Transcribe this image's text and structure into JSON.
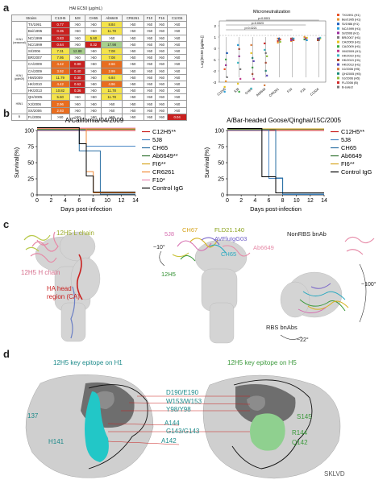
{
  "panels": {
    "a": "a",
    "b": "b",
    "c": "c",
    "d": "d"
  },
  "table": {
    "title": "HAI EC50 (μg/mL)",
    "strain_header": "Strains",
    "columns": [
      "C12H5",
      "5J8",
      "CH65",
      "Ab6649",
      "CR6261",
      "F10",
      "F16",
      "C12G6"
    ],
    "groups": [
      {
        "label": "H1N1 (seasonal)",
        "rows": [
          {
            "name": "TX/1991",
            "cells": [
              "0.77",
              ">50",
              ">50",
              "8.84",
              ">50",
              ">50",
              ">50",
              ">50"
            ],
            "colors": [
              "red",
              "wht",
              "wht",
              "yel",
              "wht",
              "wht",
              "wht",
              "wht"
            ]
          },
          {
            "name": "Bei/1995",
            "cells": [
              "0.35",
              ">50",
              ">50",
              "11.78",
              ">50",
              ">50",
              ">50",
              ">50"
            ],
            "colors": [
              "red",
              "wht",
              "wht",
              "yel",
              "wht",
              "wht",
              "wht",
              "wht"
            ]
          },
          {
            "name": "NC/1999",
            "cells": [
              "0.83",
              ">50",
              "5.60",
              ">50",
              ">50",
              ">50",
              ">50",
              ">50"
            ],
            "colors": [
              "red",
              "wht",
              "yel",
              "wht",
              "wht",
              "wht",
              "wht",
              "wht"
            ]
          },
          {
            "name": "NC/1999",
            "cells": [
              "0.64",
              ">50",
              "0.32",
              "17.98",
              ">50",
              ">50",
              ">50",
              ">50"
            ],
            "colors": [
              "red",
              "wht",
              "red",
              "grn",
              "wht",
              "wht",
              "wht",
              "wht"
            ]
          },
          {
            "name": "SI/2006",
            "cells": [
              "7.31",
              "12.88",
              ">50",
              "7.08",
              ">50",
              ">50",
              ">50",
              ">50"
            ],
            "colors": [
              "yel",
              "grn",
              "wht",
              "yel",
              "wht",
              "wht",
              "wht",
              "wht"
            ]
          },
          {
            "name": "BR/2007",
            "cells": [
              "7.95",
              ">50",
              ">50",
              "7.08",
              ">50",
              ">50",
              ">50",
              ">50"
            ],
            "colors": [
              "yel",
              "wht",
              "wht",
              "yel",
              "wht",
              "wht",
              "wht",
              "wht"
            ]
          }
        ]
      },
      {
        "label": "H1N1 (pdm09)",
        "rows": [
          {
            "name": "CA/2009",
            "cells": [
              "4.42",
              "0.80",
              ">50",
              "2.66",
              ">50",
              ">50",
              ">50",
              ">50"
            ],
            "colors": [
              "org",
              "red",
              "wht",
              "org",
              "wht",
              "wht",
              "wht",
              "wht"
            ]
          },
          {
            "name": "CA/2009",
            "cells": [
              "3.92",
              "0.40",
              ">50",
              "2.99",
              ">50",
              ">50",
              ">50",
              ">50"
            ],
            "colors": [
              "org",
              "red",
              "wht",
              "org",
              "wht",
              "wht",
              "wht",
              "wht"
            ]
          },
          {
            "name": "HM/2009",
            "cells": [
              "11.79",
              "0.30",
              ">50",
              "6.84",
              ">50",
              ">50",
              ">50",
              ">50"
            ],
            "colors": [
              "yel",
              "red",
              "wht",
              "yel",
              "wht",
              "wht",
              "wht",
              "wht"
            ]
          },
          {
            "name": "HK/2010",
            "cells": [
              "4.42",
              "0.62",
              ">50",
              "4.96",
              ">50",
              ">50",
              ">50",
              ">50"
            ],
            "colors": [
              "org",
              "red",
              "wht",
              "org",
              "wht",
              "wht",
              "wht",
              "wht"
            ]
          },
          {
            "name": "HK/2013",
            "cells": [
              "10.82",
              "0.36",
              ">50",
              "11.78",
              ">50",
              ">50",
              ">50",
              ">50"
            ],
            "colors": [
              "yel",
              "red",
              "wht",
              "yel",
              "wht",
              "wht",
              "wht",
              "wht"
            ]
          }
        ]
      },
      {
        "label": "H5N1",
        "rows": [
          {
            "name": "QH/2005",
            "cells": [
              "5.60",
              ">50",
              ">50",
              "11.78",
              ">50",
              ">50",
              ">50",
              ">50"
            ],
            "colors": [
              "yel",
              "wht",
              "wht",
              "yel",
              "wht",
              "wht",
              "wht",
              "wht"
            ]
          },
          {
            "name": "XJ/2006",
            "cells": [
              "2.96",
              ">50",
              ">50",
              ">50",
              ">50",
              ">50",
              ">50",
              ">50"
            ],
            "colors": [
              "org",
              "wht",
              "wht",
              "wht",
              "wht",
              "wht",
              "wht",
              "wht"
            ]
          },
          {
            "name": "SX/2006",
            "cells": [
              "2.93",
              ">50",
              ">50",
              ">50",
              ">50",
              ">50",
              ">50",
              ">50"
            ],
            "colors": [
              "org",
              "wht",
              "wht",
              "wht",
              "wht",
              "wht",
              "wht",
              "wht"
            ]
          }
        ]
      },
      {
        "label": "B",
        "rows": [
          {
            "name": "FL/2006",
            "cells": [
              ">50",
              ">50",
              ">50",
              ">50",
              ">50",
              ">50",
              ">50",
              "0.04"
            ],
            "colors": [
              "wht",
              "wht",
              "wht",
              "wht",
              "wht",
              "wht",
              "wht",
              "red"
            ]
          }
        ]
      }
    ]
  },
  "micro": {
    "title": "Microneutralization",
    "ylabel": "Log [EC50 (μg/mL)]",
    "pvals": [
      "p<0.0001",
      "p=0.0023",
      "p=0.0221"
    ],
    "categories": [
      "C12H5",
      "5J8",
      "CH65",
      "Ab6649",
      "CR6261",
      "F10",
      "F16",
      "C12G6"
    ],
    "legend": [
      "TX/1991 (H1)",
      "Bei/1995 (H1)",
      "SI/1986 (H1)",
      "NC/1999 (H1)",
      "SI/2006 (H1)",
      "BR/2007 (H1)",
      "CA/2009 (H1)",
      "CA/2009 (H1)",
      "XM/2009 (H1)",
      "HK/2010 (H1)",
      "HK/2013 (H1)",
      "HK/2013 (H1)",
      "XJ/2006 (H5)",
      "QH/2005 (H5)",
      "XJ/2006 (H5)",
      "FL/2006 (B)",
      "B-select"
    ],
    "legend_colors": [
      "#e8542b",
      "#e8922b",
      "#1f5fbf",
      "#2c9fd8",
      "#9b2c9c",
      "#7b7b7b",
      "#e6c21e",
      "#39a844",
      "#c03b8d",
      "#3fb8c4",
      "#b2442c",
      "#5c4ab8",
      "#d87a3a",
      "#1c8c7a",
      "#8fbe3b",
      "#d12a2a",
      "#777777"
    ]
  },
  "chart_data": [
    {
      "type": "line",
      "title": "A/California/04/2009",
      "xlabel": "Days post-infection",
      "ylabel": "Survival(%)",
      "xlim": [
        0,
        14
      ],
      "ylim": [
        0,
        100
      ],
      "xticks": [
        "0",
        "2",
        "4",
        "6",
        "8",
        "10",
        "12",
        "14"
      ],
      "yticks": [
        "0",
        "25",
        "50",
        "75",
        "100"
      ],
      "series": [
        {
          "name": "C12H5**",
          "color": "#c9201f",
          "x": [
            0,
            14
          ],
          "y": [
            100,
            100
          ]
        },
        {
          "name": "5J8",
          "color": "#4a87c5",
          "x": [
            0,
            7,
            7,
            14
          ],
          "y": [
            100,
            100,
            75,
            75
          ]
        },
        {
          "name": "CH65",
          "color": "#2a6fa3",
          "x": [
            0,
            6,
            6,
            9,
            9,
            14
          ],
          "y": [
            100,
            100,
            67,
            67,
            0,
            0
          ]
        },
        {
          "name": "Ab6649**",
          "color": "#2f6f2f",
          "x": [
            0,
            14
          ],
          "y": [
            100,
            100
          ]
        },
        {
          "name": "FI6**",
          "color": "#d6a31c",
          "x": [
            0,
            14
          ],
          "y": [
            100,
            100
          ]
        },
        {
          "name": "CR6261",
          "color": "#f08a37",
          "x": [
            0,
            7,
            7,
            8,
            8,
            14
          ],
          "y": [
            100,
            100,
            33,
            33,
            0,
            0
          ]
        },
        {
          "name": "F10*",
          "color": "#e88ab4",
          "x": [
            0,
            14
          ],
          "y": [
            100,
            100
          ]
        },
        {
          "name": "Control IgG",
          "color": "#000000",
          "x": [
            0,
            6,
            6,
            7,
            7,
            8,
            8,
            14
          ],
          "y": [
            100,
            100,
            75,
            75,
            25,
            25,
            0,
            0
          ]
        }
      ]
    },
    {
      "type": "line",
      "title": "A/Bar-headed Goose/Qinghai/15C/2005",
      "xlabel": "Days post-infection",
      "ylabel": "Survival(%)",
      "xlim": [
        0,
        14
      ],
      "ylim": [
        0,
        100
      ],
      "xticks": [
        "0",
        "2",
        "4",
        "6",
        "8",
        "10",
        "12",
        "14"
      ],
      "yticks": [
        "0",
        "25",
        "50",
        "75",
        "100"
      ],
      "series": [
        {
          "name": "C12H5**",
          "color": "#c9201f",
          "x": [
            0,
            14
          ],
          "y": [
            100,
            100
          ]
        },
        {
          "name": "5J8",
          "color": "#4a87c5",
          "x": [
            0,
            6,
            6,
            8,
            8,
            14
          ],
          "y": [
            100,
            100,
            25,
            25,
            0,
            0
          ]
        },
        {
          "name": "CH65",
          "color": "#2a6fa3",
          "x": [
            0,
            7,
            7,
            8,
            8,
            14
          ],
          "y": [
            100,
            100,
            25,
            25,
            0,
            0
          ]
        },
        {
          "name": "Ab6649",
          "color": "#2f6f2f",
          "x": [
            0,
            14
          ],
          "y": [
            100,
            100
          ]
        },
        {
          "name": "FI6**",
          "color": "#d6a31c",
          "x": [
            0,
            14
          ],
          "y": [
            100,
            100
          ]
        },
        {
          "name": "Control IgG",
          "color": "#000000",
          "x": [
            0,
            5,
            5,
            7,
            7,
            14
          ],
          "y": [
            100,
            100,
            25,
            25,
            0,
            0
          ]
        }
      ]
    }
  ],
  "c": {
    "light_chain": "12H5 L chain",
    "heavy_chain": "12H5 H chain",
    "ha_head": "HA head",
    "region": "region (CA)",
    "antibodies": [
      "5J8",
      "CH67",
      "FLD21.140",
      "AVFluIgG03",
      "CH65",
      "Ab6649",
      "12H5"
    ],
    "angle1": "~10°",
    "nonrbs": "NonRBS bnAb",
    "rbs": "RBS bnAbs",
    "angle2": "~100°",
    "angle3": "~22°"
  },
  "d": {
    "title_h1": "12H5 key epitope on H1",
    "title_h5": "12H5 key epitope on H5",
    "labels_mid": [
      "D190/E190",
      "W153/W153",
      "Y98/Y98",
      "A144",
      "G143/G143",
      "A142"
    ],
    "labels_left": [
      "137",
      "H141"
    ],
    "labels_right": [
      "S145",
      "R144",
      "Q142"
    ],
    "watermark": "SKLVD"
  }
}
